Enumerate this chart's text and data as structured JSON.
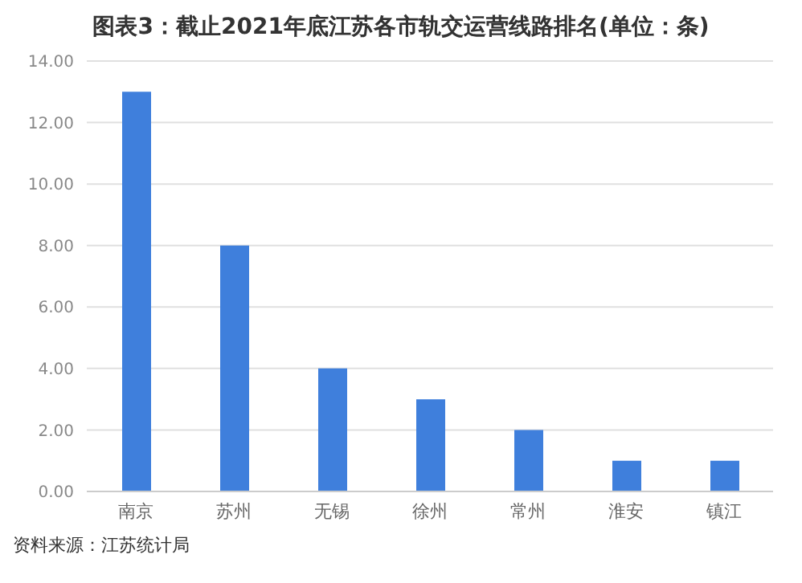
{
  "chart_data": {
    "type": "bar",
    "title": "图表3：截止2021年底江苏各市轨交运营线路排名(单位：条)",
    "categories": [
      "南京",
      "苏州",
      "无锡",
      "徐州",
      "常州",
      "淮安",
      "镇江"
    ],
    "values": [
      13,
      8,
      4,
      3,
      2,
      1,
      1
    ],
    "color": "#3f7fdc",
    "ylim": [
      0,
      14
    ],
    "yticks": [
      {
        "value": 0,
        "label": "0.00"
      },
      {
        "value": 2,
        "label": "2.00"
      },
      {
        "value": 4,
        "label": "4.00"
      },
      {
        "value": 6,
        "label": "6.00"
      },
      {
        "value": 8,
        "label": "8.00"
      },
      {
        "value": 10,
        "label": "10.00"
      },
      {
        "value": 12,
        "label": "12.00"
      },
      {
        "value": 14,
        "label": "14.00"
      }
    ],
    "grid": "y",
    "annotations": [
      "资料来源：江苏统计局"
    ]
  }
}
